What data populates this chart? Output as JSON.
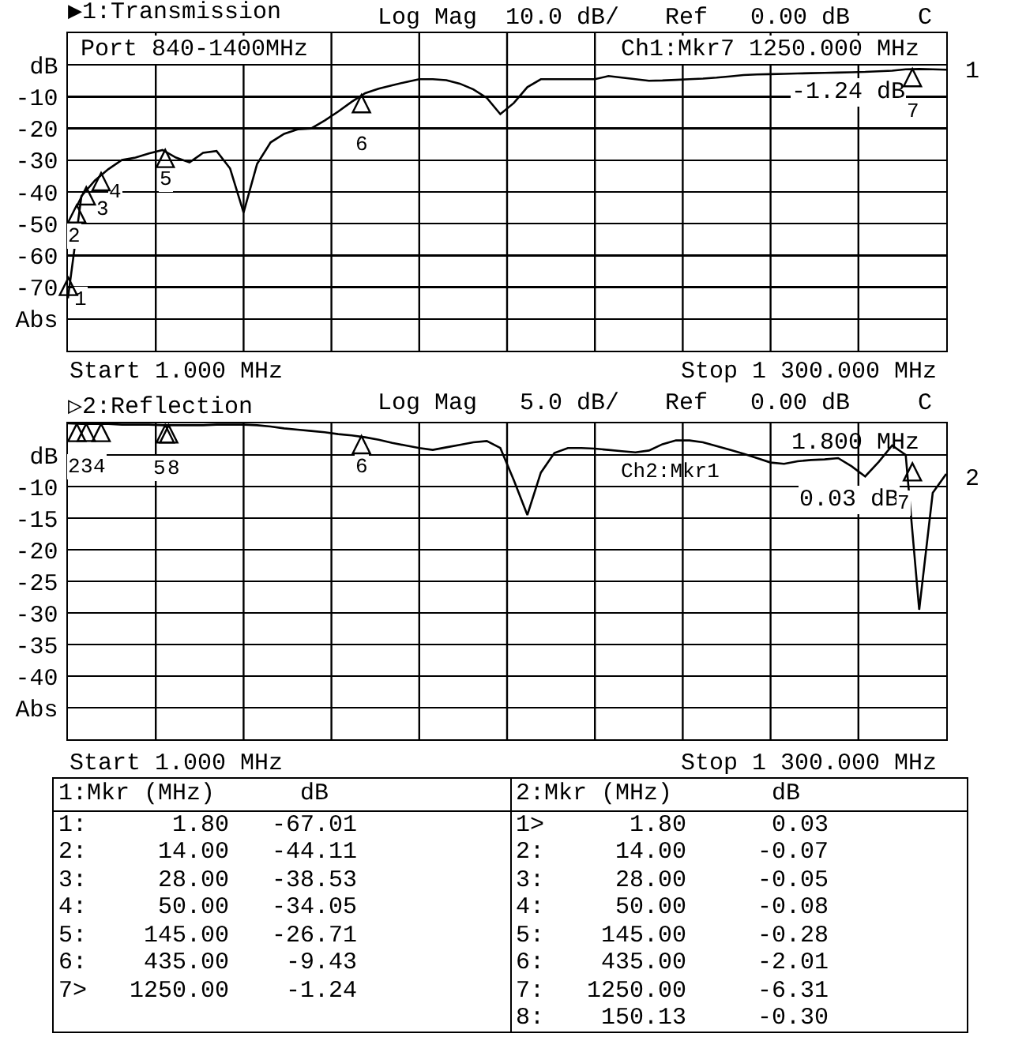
{
  "chart_data": [
    {
      "type": "line",
      "title": "▶1:Transmission",
      "annotations": [
        "Log Mag  10.0 dB/",
        "Ref   0.00 dB",
        "C",
        "Port 840-1400MHz",
        "Ch1:Mkr7 1250.000 MHz",
        "-1.24 dB",
        "1",
        "Start 1.000 MHz",
        "Stop 1 300.000 MHz",
        "1",
        "2",
        "3",
        "4",
        "5",
        "6",
        "7"
      ],
      "categories": [
        null,
        null,
        null,
        null,
        null,
        null,
        null,
        null,
        null,
        null,
        null,
        null,
        null,
        null,
        null,
        null,
        null,
        null,
        null,
        null,
        null,
        null,
        null,
        null,
        null,
        null,
        null,
        null,
        null,
        null,
        null,
        null,
        null,
        null,
        null,
        null,
        null,
        null,
        null,
        null,
        null,
        null,
        null,
        null,
        null,
        null,
        null,
        null,
        null,
        null,
        null,
        null,
        null,
        null,
        null,
        null,
        null,
        null,
        null,
        null,
        null,
        null,
        null,
        null,
        null,
        null
      ],
      "ylim": [
        -90,
        10
      ],
      "yticks": [
        {
          "value": 10,
          "label": null
        },
        {
          "value": 0,
          "label": "dB"
        },
        -10,
        -20,
        -30,
        -40,
        -50,
        -60,
        -70,
        {
          "value": -80,
          "label": "Abs"
        },
        {
          "value": -90,
          "label": null
        }
      ],
      "grid": true,
      "tick_labels": "y",
      "line_style": "solid",
      "marker": "none",
      "series": [
        {
          "color": "#000000",
          "values": [
            -73.5,
            -41.3,
            -36.4,
            -32.8,
            -29.9,
            -29.2,
            -27.9,
            -26.8,
            -29.2,
            -30.7,
            -27.7,
            -27.1,
            -32.6,
            -46.5,
            -31.2,
            -24.4,
            -21.7,
            -20.3,
            -20,
            -17.5,
            -14.7,
            -11.6,
            -8.9,
            -7.5,
            -6.4,
            -5.4,
            -4.5,
            -4.5,
            -4.8,
            -5.9,
            -7.7,
            -10.4,
            -15.5,
            -12,
            -7,
            -4.5,
            -4.5,
            -4.5,
            -4.5,
            -4.5,
            -3.5,
            -4,
            -4.5,
            -5,
            -4.9,
            -4.7,
            -4.5,
            -4.3,
            -4,
            -3.6,
            -3.2,
            -3,
            -2.9,
            -2.8,
            -2.7,
            -2.6,
            -2.5,
            -2.4,
            -2.3,
            -2.2,
            -2,
            -1.8,
            -1.4,
            -1.3,
            -1.4,
            -1.5
          ]
        }
      ]
    },
    {
      "type": "line",
      "title": "▷2:Reflection",
      "annotations": [
        "Log Mag   5.0 dB/",
        "Ref   0.00 dB",
        "C",
        "Ch2:Mkr1",
        "1.800 MHz",
        "0.03 dB",
        "2",
        "Start 1.000 MHz",
        "Stop 1 300.000 MHz",
        "2",
        "3",
        "4",
        "5",
        "8",
        "6",
        "7"
      ],
      "categories": [
        null,
        null,
        null,
        null,
        null,
        null,
        null,
        null,
        null,
        null,
        null,
        null,
        null,
        null,
        null,
        null,
        null,
        null,
        null,
        null,
        null,
        null,
        null,
        null,
        null,
        null,
        null,
        null,
        null,
        null,
        null,
        null,
        null,
        null,
        null,
        null,
        null,
        null,
        null,
        null,
        null,
        null,
        null,
        null,
        null,
        null,
        null,
        null,
        null,
        null,
        null,
        null,
        null,
        null,
        null,
        null,
        null,
        null,
        null,
        null,
        null,
        null,
        null,
        null,
        null,
        null
      ],
      "ylim": [
        -50,
        0
      ],
      "yticks": [
        {
          "value": 0,
          "label": null
        },
        {
          "value": -5,
          "label": "dB"
        },
        -10,
        -15,
        -20,
        -25,
        -30,
        -35,
        -40,
        {
          "value": -45,
          "label": "Abs"
        },
        {
          "value": -50,
          "label": null
        }
      ],
      "grid": true,
      "tick_labels": "y",
      "line_style": "solid",
      "marker": "none",
      "series": [
        {
          "color": "#000000",
          "values": [
            0,
            -0.1,
            -0.1,
            -0.1,
            -0.2,
            -0.2,
            -0.2,
            -0.3,
            -0.3,
            -0.3,
            -0.3,
            -0.2,
            -0.2,
            -0.2,
            -0.3,
            -0.5,
            -0.8,
            -1,
            -1.2,
            -1.4,
            -1.7,
            -1.9,
            -2.2,
            -2.6,
            -3.1,
            -3.5,
            -3.9,
            -4.2,
            -3.8,
            -3.4,
            -3,
            -2.8,
            -3.9,
            -9,
            -14.5,
            -7.8,
            -4.7,
            -3.9,
            -3.9,
            -4,
            -4.2,
            -4.4,
            -4.6,
            -4.3,
            -3.3,
            -2.7,
            -2.7,
            -3,
            -3.6,
            -4.2,
            -4.8,
            -5.5,
            -6.2,
            -6.4,
            -6,
            -5.8,
            -5.7,
            -5.5,
            -6.8,
            -8.4,
            -6.1,
            -3.5,
            -5,
            -29.5,
            -11,
            -8
          ]
        }
      ]
    },
    {
      "type": "other",
      "annotations": [
        "1:Mkr (MHz)      dB",
        "1:      1.80   -67.01",
        "2:     14.00   -44.11",
        "3:     28.00   -38.53",
        "4:     50.00   -34.05",
        "5:    145.00   -26.71",
        "6:    435.00    -9.43",
        "7>   1250.00    -1.24",
        "2:Mkr (MHz)       dB",
        "1>      1.80      0.03",
        "2:     14.00     -0.07",
        "3:     28.00     -0.05",
        "4:     50.00     -0.08",
        "5:    145.00     -0.28",
        "6:    435.00     -2.01",
        "7:   1250.00     -6.31",
        "8:    150.13     -0.30"
      ]
    }
  ]
}
